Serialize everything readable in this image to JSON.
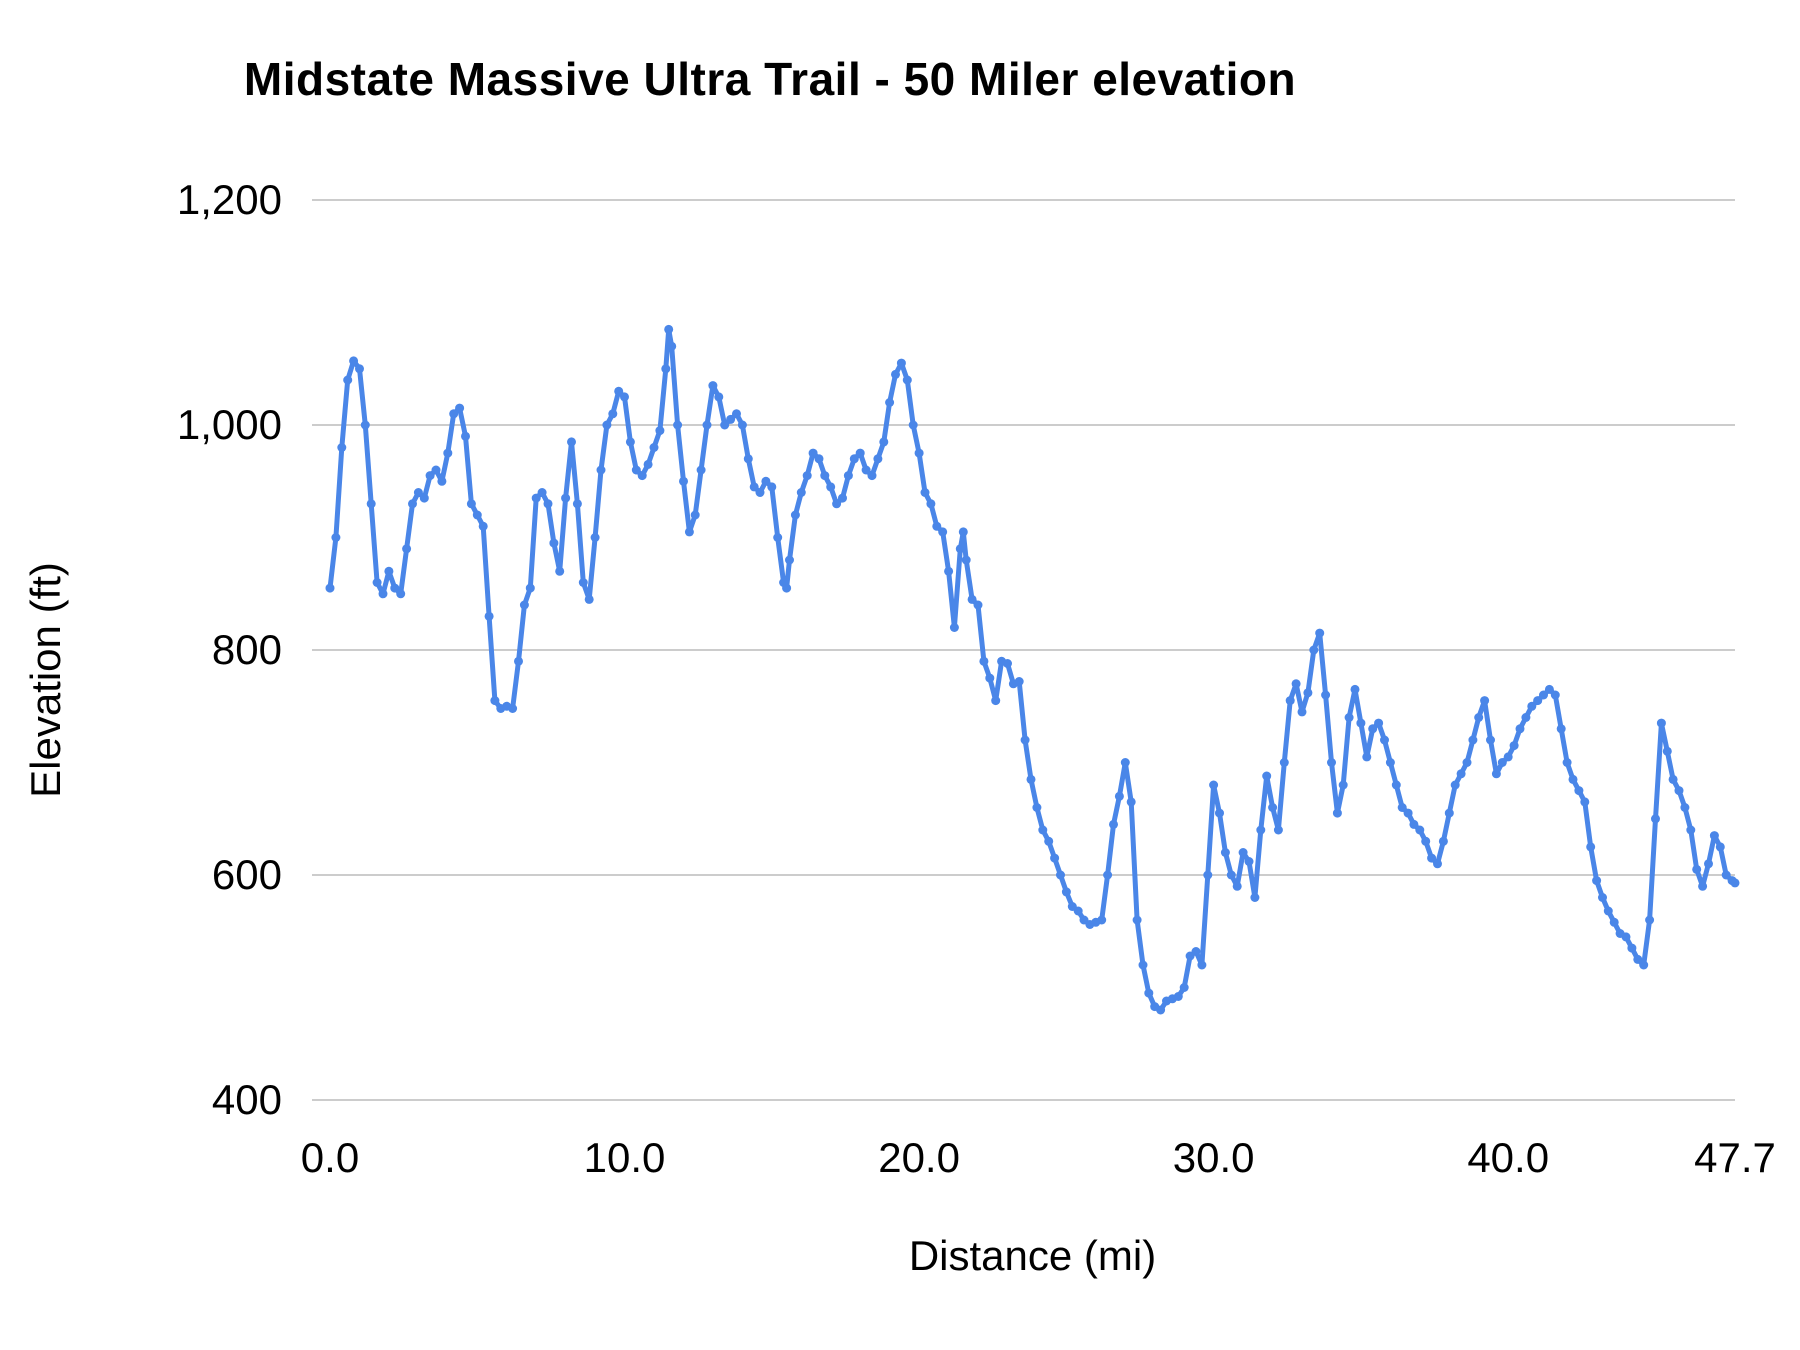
{
  "title": "Midstate Massive Ultra Trail - 50 Miler elevation",
  "chart_data": {
    "type": "line",
    "title": "Midstate Massive Ultra Trail - 50 Miler elevation",
    "xlabel": "Distance (mi)",
    "ylabel": "Elevation (ft)",
    "xlim": [
      0,
      47.7
    ],
    "ylim": [
      400,
      1200
    ],
    "grid": "horizontal",
    "legend": "none",
    "line_color": "#4a86e8",
    "grid_color": "#cccccc",
    "text_color": "#000000",
    "xticks": {
      "values": [
        0,
        10,
        20,
        30,
        40,
        47.7
      ],
      "labels": [
        "0.0",
        "10.0",
        "20.0",
        "30.0",
        "40.0",
        "47.7"
      ]
    },
    "yticks": {
      "values": [
        400,
        600,
        800,
        1000,
        1200
      ],
      "labels": [
        "400",
        "600",
        "800",
        "1,000",
        "1,200"
      ]
    },
    "points": [
      [
        0.0,
        855
      ],
      [
        0.2,
        900
      ],
      [
        0.4,
        980
      ],
      [
        0.6,
        1040
      ],
      [
        0.8,
        1057
      ],
      [
        1.0,
        1050
      ],
      [
        1.2,
        1000
      ],
      [
        1.4,
        930
      ],
      [
        1.6,
        860
      ],
      [
        1.8,
        850
      ],
      [
        2.0,
        870
      ],
      [
        2.2,
        855
      ],
      [
        2.4,
        850
      ],
      [
        2.6,
        890
      ],
      [
        2.8,
        930
      ],
      [
        3.0,
        940
      ],
      [
        3.2,
        935
      ],
      [
        3.4,
        955
      ],
      [
        3.6,
        960
      ],
      [
        3.8,
        950
      ],
      [
        4.0,
        975
      ],
      [
        4.2,
        1010
      ],
      [
        4.4,
        1015
      ],
      [
        4.6,
        990
      ],
      [
        4.8,
        930
      ],
      [
        5.0,
        920
      ],
      [
        5.2,
        910
      ],
      [
        5.4,
        830
      ],
      [
        5.6,
        755
      ],
      [
        5.8,
        748
      ],
      [
        6.0,
        750
      ],
      [
        6.2,
        748
      ],
      [
        6.4,
        790
      ],
      [
        6.6,
        840
      ],
      [
        6.8,
        855
      ],
      [
        7.0,
        935
      ],
      [
        7.2,
        940
      ],
      [
        7.4,
        930
      ],
      [
        7.6,
        895
      ],
      [
        7.8,
        870
      ],
      [
        8.0,
        935
      ],
      [
        8.2,
        985
      ],
      [
        8.4,
        930
      ],
      [
        8.6,
        860
      ],
      [
        8.8,
        845
      ],
      [
        9.0,
        900
      ],
      [
        9.2,
        960
      ],
      [
        9.4,
        1000
      ],
      [
        9.6,
        1010
      ],
      [
        9.8,
        1030
      ],
      [
        10.0,
        1025
      ],
      [
        10.2,
        985
      ],
      [
        10.4,
        960
      ],
      [
        10.6,
        955
      ],
      [
        10.8,
        965
      ],
      [
        11.0,
        980
      ],
      [
        11.2,
        995
      ],
      [
        11.4,
        1050
      ],
      [
        11.5,
        1085
      ],
      [
        11.6,
        1070
      ],
      [
        11.8,
        1000
      ],
      [
        12.0,
        950
      ],
      [
        12.2,
        905
      ],
      [
        12.4,
        920
      ],
      [
        12.6,
        960
      ],
      [
        12.8,
        1000
      ],
      [
        13.0,
        1035
      ],
      [
        13.2,
        1025
      ],
      [
        13.4,
        1000
      ],
      [
        13.6,
        1005
      ],
      [
        13.8,
        1010
      ],
      [
        14.0,
        1000
      ],
      [
        14.2,
        970
      ],
      [
        14.4,
        945
      ],
      [
        14.6,
        940
      ],
      [
        14.8,
        950
      ],
      [
        15.0,
        945
      ],
      [
        15.2,
        900
      ],
      [
        15.4,
        860
      ],
      [
        15.5,
        855
      ],
      [
        15.6,
        880
      ],
      [
        15.8,
        920
      ],
      [
        16.0,
        940
      ],
      [
        16.2,
        955
      ],
      [
        16.4,
        975
      ],
      [
        16.6,
        970
      ],
      [
        16.8,
        955
      ],
      [
        17.0,
        945
      ],
      [
        17.2,
        930
      ],
      [
        17.4,
        935
      ],
      [
        17.6,
        955
      ],
      [
        17.8,
        970
      ],
      [
        18.0,
        975
      ],
      [
        18.2,
        960
      ],
      [
        18.4,
        955
      ],
      [
        18.6,
        970
      ],
      [
        18.8,
        985
      ],
      [
        19.0,
        1020
      ],
      [
        19.2,
        1045
      ],
      [
        19.4,
        1055
      ],
      [
        19.6,
        1040
      ],
      [
        19.8,
        1000
      ],
      [
        20.0,
        975
      ],
      [
        20.2,
        940
      ],
      [
        20.4,
        930
      ],
      [
        20.6,
        910
      ],
      [
        20.8,
        905
      ],
      [
        21.0,
        870
      ],
      [
        21.2,
        820
      ],
      [
        21.4,
        890
      ],
      [
        21.5,
        905
      ],
      [
        21.6,
        880
      ],
      [
        21.8,
        845
      ],
      [
        22.0,
        840
      ],
      [
        22.2,
        790
      ],
      [
        22.4,
        775
      ],
      [
        22.6,
        755
      ],
      [
        22.8,
        790
      ],
      [
        23.0,
        788
      ],
      [
        23.2,
        770
      ],
      [
        23.4,
        772
      ],
      [
        23.6,
        720
      ],
      [
        23.8,
        685
      ],
      [
        24.0,
        660
      ],
      [
        24.2,
        640
      ],
      [
        24.4,
        630
      ],
      [
        24.6,
        615
      ],
      [
        24.8,
        600
      ],
      [
        25.0,
        585
      ],
      [
        25.2,
        572
      ],
      [
        25.4,
        568
      ],
      [
        25.6,
        560
      ],
      [
        25.8,
        556
      ],
      [
        26.0,
        558
      ],
      [
        26.2,
        560
      ],
      [
        26.4,
        600
      ],
      [
        26.6,
        645
      ],
      [
        26.8,
        670
      ],
      [
        27.0,
        700
      ],
      [
        27.2,
        665
      ],
      [
        27.4,
        560
      ],
      [
        27.6,
        520
      ],
      [
        27.8,
        495
      ],
      [
        28.0,
        483
      ],
      [
        28.2,
        480
      ],
      [
        28.4,
        488
      ],
      [
        28.6,
        490
      ],
      [
        28.8,
        492
      ],
      [
        29.0,
        500
      ],
      [
        29.2,
        528
      ],
      [
        29.4,
        532
      ],
      [
        29.6,
        520
      ],
      [
        29.8,
        600
      ],
      [
        30.0,
        680
      ],
      [
        30.2,
        655
      ],
      [
        30.4,
        620
      ],
      [
        30.6,
        600
      ],
      [
        30.8,
        590
      ],
      [
        31.0,
        620
      ],
      [
        31.2,
        612
      ],
      [
        31.4,
        580
      ],
      [
        31.6,
        640
      ],
      [
        31.8,
        688
      ],
      [
        32.0,
        660
      ],
      [
        32.2,
        640
      ],
      [
        32.4,
        700
      ],
      [
        32.6,
        755
      ],
      [
        32.8,
        770
      ],
      [
        33.0,
        745
      ],
      [
        33.2,
        762
      ],
      [
        33.4,
        800
      ],
      [
        33.6,
        815
      ],
      [
        33.8,
        760
      ],
      [
        34.0,
        700
      ],
      [
        34.2,
        655
      ],
      [
        34.4,
        680
      ],
      [
        34.6,
        740
      ],
      [
        34.8,
        765
      ],
      [
        35.0,
        735
      ],
      [
        35.2,
        705
      ],
      [
        35.4,
        730
      ],
      [
        35.6,
        735
      ],
      [
        35.8,
        720
      ],
      [
        36.0,
        700
      ],
      [
        36.2,
        680
      ],
      [
        36.4,
        660
      ],
      [
        36.6,
        655
      ],
      [
        36.8,
        645
      ],
      [
        37.0,
        640
      ],
      [
        37.2,
        630
      ],
      [
        37.4,
        615
      ],
      [
        37.6,
        610
      ],
      [
        37.8,
        630
      ],
      [
        38.0,
        655
      ],
      [
        38.2,
        680
      ],
      [
        38.4,
        690
      ],
      [
        38.6,
        700
      ],
      [
        38.8,
        720
      ],
      [
        39.0,
        740
      ],
      [
        39.2,
        755
      ],
      [
        39.4,
        720
      ],
      [
        39.6,
        690
      ],
      [
        39.8,
        700
      ],
      [
        40.0,
        705
      ],
      [
        40.2,
        715
      ],
      [
        40.4,
        730
      ],
      [
        40.6,
        740
      ],
      [
        40.8,
        750
      ],
      [
        41.0,
        755
      ],
      [
        41.2,
        760
      ],
      [
        41.4,
        765
      ],
      [
        41.6,
        760
      ],
      [
        41.8,
        730
      ],
      [
        42.0,
        700
      ],
      [
        42.2,
        685
      ],
      [
        42.4,
        675
      ],
      [
        42.6,
        665
      ],
      [
        42.8,
        625
      ],
      [
        43.0,
        595
      ],
      [
        43.2,
        580
      ],
      [
        43.4,
        568
      ],
      [
        43.6,
        558
      ],
      [
        43.8,
        548
      ],
      [
        44.0,
        545
      ],
      [
        44.2,
        535
      ],
      [
        44.4,
        525
      ],
      [
        44.6,
        520
      ],
      [
        44.8,
        560
      ],
      [
        45.0,
        650
      ],
      [
        45.2,
        735
      ],
      [
        45.4,
        710
      ],
      [
        45.6,
        685
      ],
      [
        45.8,
        675
      ],
      [
        46.0,
        660
      ],
      [
        46.2,
        640
      ],
      [
        46.4,
        605
      ],
      [
        46.6,
        590
      ],
      [
        46.8,
        610
      ],
      [
        47.0,
        635
      ],
      [
        47.2,
        625
      ],
      [
        47.4,
        600
      ],
      [
        47.6,
        595
      ],
      [
        47.7,
        593
      ]
    ]
  }
}
